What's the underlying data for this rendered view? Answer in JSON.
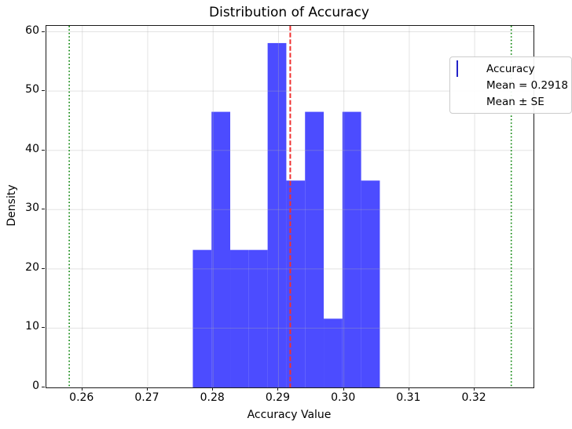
{
  "chart_data": {
    "type": "bar",
    "subtype": "histogram",
    "title": "Distribution of Accuracy",
    "xlabel": "Accuracy Value",
    "ylabel": "Density",
    "xlim": [
      0.2545,
      0.329
    ],
    "ylim": [
      0,
      61.0
    ],
    "x_ticks": [
      "0.26",
      "0.27",
      "0.28",
      "0.29",
      "0.30",
      "0.31",
      "0.32"
    ],
    "y_ticks": [
      "0",
      "10",
      "20",
      "30",
      "40",
      "50",
      "60"
    ],
    "grid": true,
    "bins": {
      "edges": [
        0.2769,
        0.27976,
        0.28262,
        0.28548,
        0.28834,
        0.2912,
        0.29406,
        0.29692,
        0.29978,
        0.30264,
        0.3055
      ],
      "densities": [
        23.2,
        46.5,
        23.2,
        23.2,
        58.1,
        34.9,
        46.5,
        11.6,
        46.5,
        34.9
      ]
    },
    "mean_line": {
      "value": 0.2918,
      "style": "dashed"
    },
    "se_lines": {
      "values": [
        0.258,
        0.3256
      ],
      "style": "dotted"
    },
    "colors": {
      "bar_fill": "#4C4CFF",
      "mean_line": "#F03030",
      "se_line": "#008000",
      "grid": "#B0B0B0",
      "spine": "#1A1A1A"
    },
    "legend": {
      "position": "upper right",
      "entries": [
        {
          "label": "Accuracy",
          "type": "patch"
        },
        {
          "label": "Mean = 0.2918",
          "type": "dashed-line"
        },
        {
          "label": "Mean ± SE",
          "type": "dotted-line"
        }
      ]
    }
  }
}
